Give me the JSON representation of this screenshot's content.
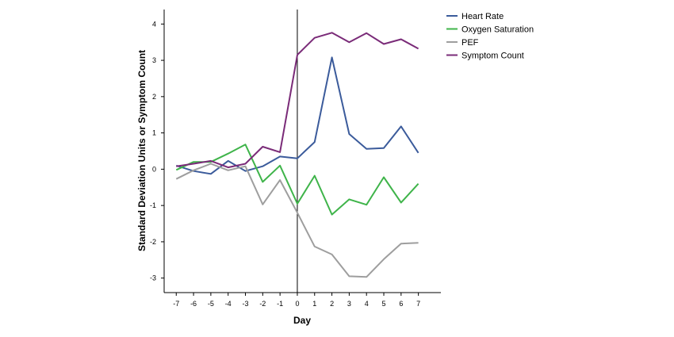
{
  "chart_data": {
    "type": "line",
    "xlabel": "Day",
    "ylabel": "Standard Deviation Units or Symptom Count",
    "x": [
      -7,
      -6,
      -5,
      -4,
      -3,
      -2,
      -1,
      0,
      1,
      2,
      3,
      4,
      5,
      6,
      7
    ],
    "xlim": [
      -7.7,
      8.3
    ],
    "ylim": [
      -3.4,
      4.4
    ],
    "xticks": [
      -7,
      -6,
      -5,
      -4,
      -3,
      -2,
      -1,
      0,
      1,
      2,
      3,
      4,
      5,
      6,
      7
    ],
    "yticks": [
      4,
      3,
      2,
      1,
      0,
      -1,
      -2,
      -3
    ],
    "reference_line_x": 0,
    "grid": false,
    "legend_position": "top-right",
    "series": [
      {
        "name": "Heart Rate",
        "color": "#3b5b9b",
        "values": [
          0.1,
          -0.05,
          -0.13,
          0.23,
          -0.05,
          0.08,
          0.35,
          0.3,
          0.75,
          3.08,
          0.97,
          0.56,
          0.58,
          1.18,
          0.45
        ]
      },
      {
        "name": "Oxygen Saturation",
        "color": "#3fb44a",
        "values": [
          -0.02,
          0.2,
          0.2,
          0.43,
          0.68,
          -0.35,
          0.1,
          -0.95,
          -0.18,
          -1.25,
          -0.83,
          -0.98,
          -0.22,
          -0.92,
          -0.4
        ]
      },
      {
        "name": "PEF",
        "color": "#9e9e9e",
        "values": [
          -0.27,
          -0.03,
          0.15,
          -0.03,
          0.08,
          -0.97,
          -0.3,
          -1.2,
          -2.13,
          -2.35,
          -2.95,
          -2.97,
          -2.48,
          -2.05,
          -2.03
        ]
      },
      {
        "name": "Symptom Count",
        "color": "#7a2b78",
        "values": [
          0.08,
          0.15,
          0.23,
          0.05,
          0.15,
          0.62,
          0.47,
          3.15,
          3.62,
          3.76,
          3.5,
          3.75,
          3.45,
          3.58,
          3.32
        ]
      }
    ]
  }
}
